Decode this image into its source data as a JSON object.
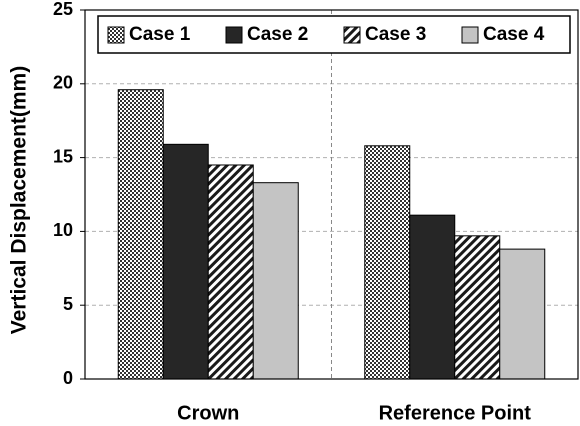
{
  "chart_data": {
    "type": "bar",
    "y_label": "Vertical Displacement(mm)",
    "categories": [
      "Crown",
      "Reference Point"
    ],
    "series": [
      {
        "name": "Case 1",
        "color": "#333333",
        "pattern": "checker",
        "values": [
          19.6,
          15.8
        ]
      },
      {
        "name": "Case 2",
        "color": "#262626",
        "pattern": "solid",
        "values": [
          15.9,
          11.1
        ]
      },
      {
        "name": "Case 3",
        "color": "#1a1a1a",
        "pattern": "diagonal",
        "values": [
          14.5,
          9.7
        ]
      },
      {
        "name": "Case 4",
        "color": "#c4c4c4",
        "pattern": "solid",
        "values": [
          13.3,
          8.8
        ]
      }
    ],
    "ylim": [
      0,
      25
    ],
    "yticks": [
      0,
      5,
      10,
      15,
      20,
      25
    ],
    "grid": true,
    "legend": "top"
  }
}
